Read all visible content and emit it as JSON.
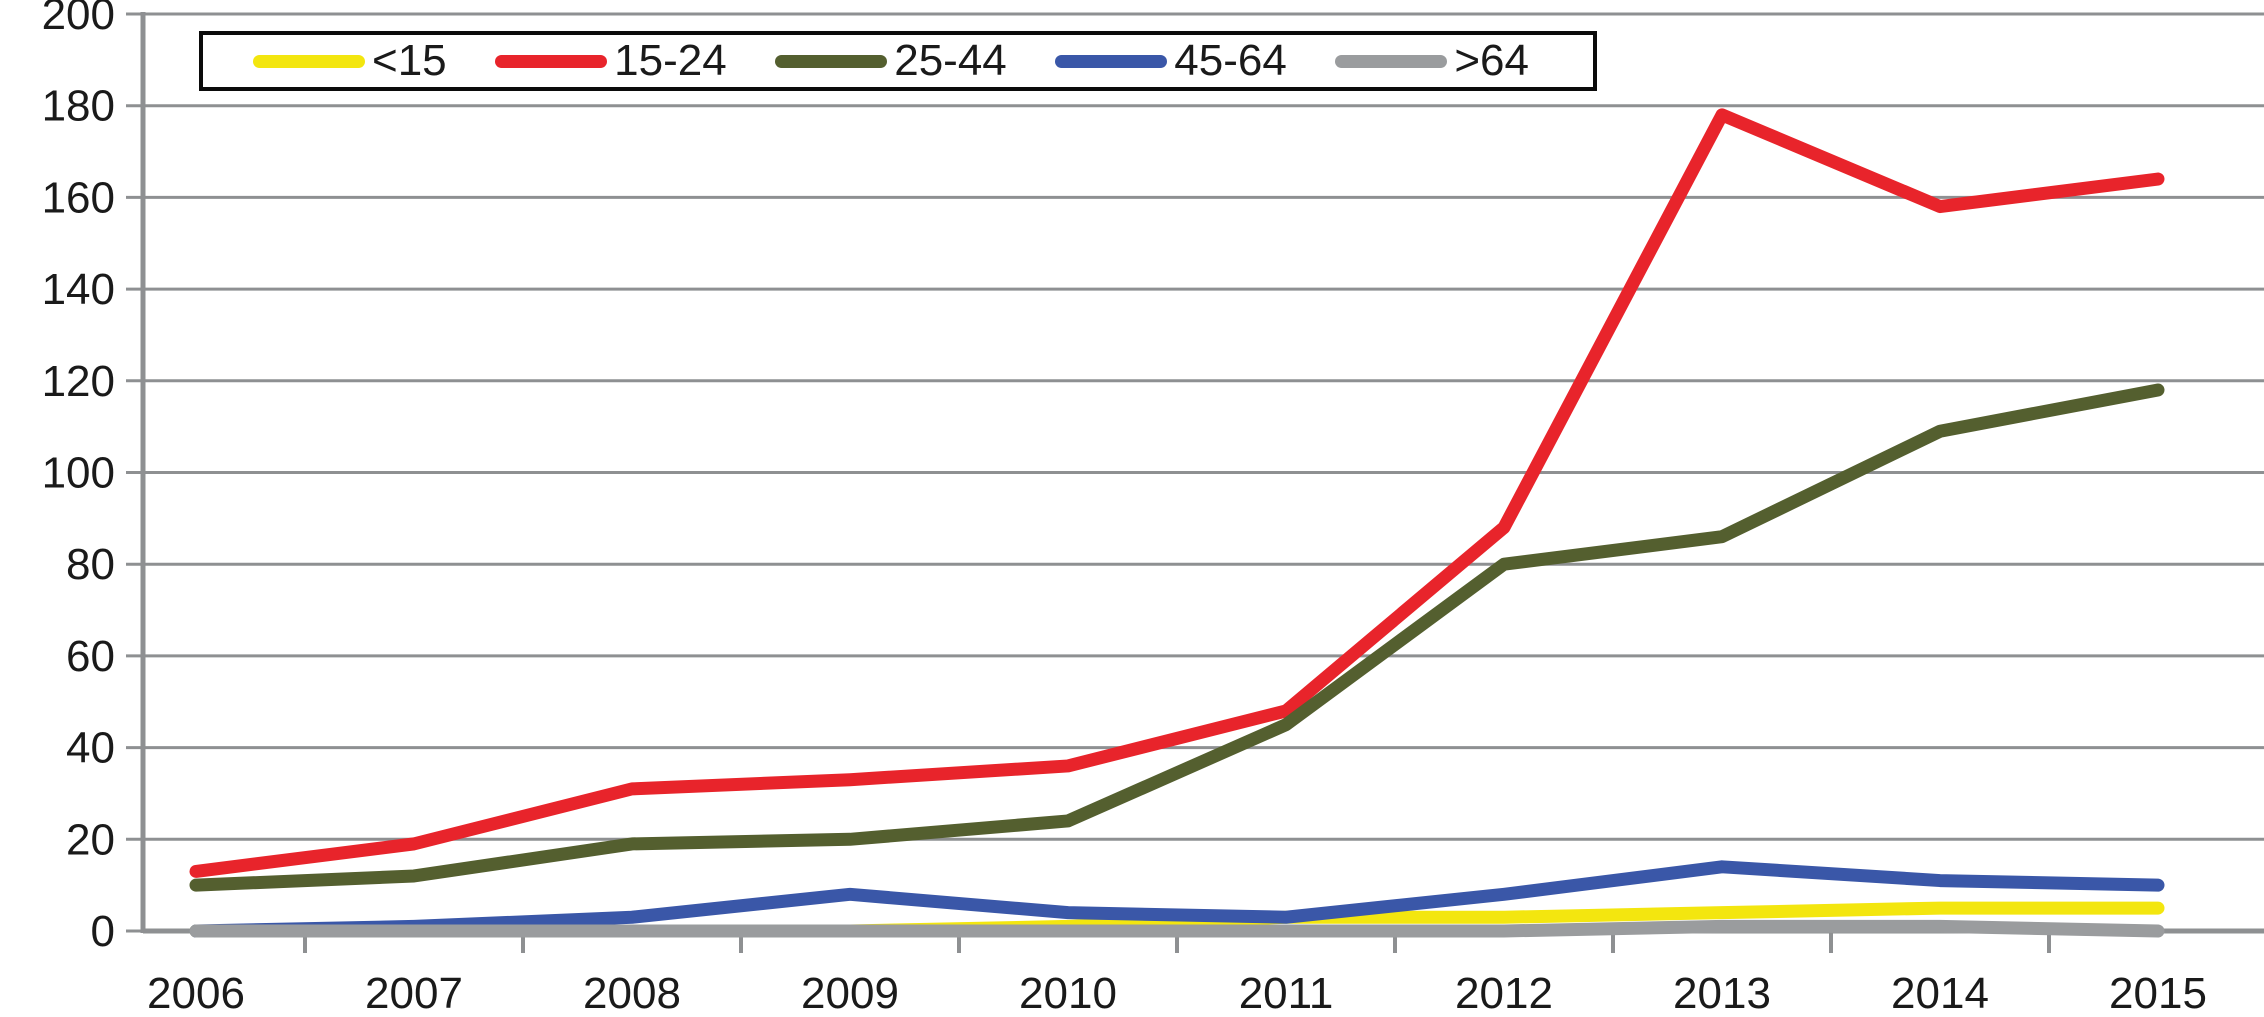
{
  "chart_data": {
    "type": "line",
    "x": [
      2006,
      2007,
      2008,
      2009,
      2010,
      2011,
      2012,
      2013,
      2014,
      2015
    ],
    "x_labels": [
      "2006",
      "2007",
      "2008",
      "2009",
      "2010",
      "2011",
      "2012",
      "2013",
      "2014",
      "2015"
    ],
    "y_ticks": [
      0,
      20,
      40,
      60,
      80,
      100,
      120,
      140,
      160,
      180,
      200
    ],
    "ylim": [
      0,
      200
    ],
    "series": [
      {
        "name": "<15",
        "color": "#F3E60F",
        "values": [
          0,
          0,
          0,
          0,
          1,
          3,
          3,
          4,
          5,
          5
        ]
      },
      {
        "name": "15-24",
        "color": "#E8242B",
        "values": [
          13,
          19,
          31,
          33,
          36,
          48,
          88,
          178,
          158,
          164
        ]
      },
      {
        "name": "25-44",
        "color": "#545F2F",
        "values": [
          10,
          12,
          19,
          20,
          24,
          45,
          80,
          86,
          109,
          118
        ]
      },
      {
        "name": "45-64",
        "color": "#3A57A8",
        "values": [
          0,
          1,
          3,
          8,
          4,
          3,
          8,
          14,
          11,
          10
        ]
      },
      {
        "name": ">64",
        "color": "#9A9C9E",
        "values": [
          0,
          0,
          0,
          0,
          0,
          0,
          0,
          1,
          1,
          0
        ]
      }
    ],
    "title": "",
    "xlabel": "",
    "ylabel": "",
    "grid": "horizontal",
    "legend_position": "top-left",
    "colors": {
      "grid_line": "#8E9092",
      "axis_line": "#8E9092",
      "label_text": "#1A1A1A",
      "legend_border": "#0B0B0B",
      "background": "#FFFFFF"
    }
  }
}
